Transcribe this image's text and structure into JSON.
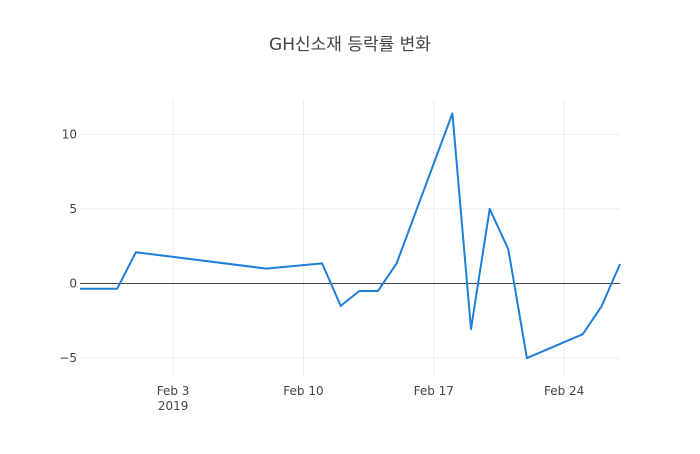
{
  "chart_data": {
    "type": "line",
    "title": "GH신소재 등락률 변화",
    "xlabel": "",
    "ylabel": "",
    "x_ticks": [
      {
        "date": "2019-02-03",
        "label": "Feb 3",
        "sublabel": "2019"
      },
      {
        "date": "2019-02-10",
        "label": "Feb 10",
        "sublabel": ""
      },
      {
        "date": "2019-02-17",
        "label": "Feb 17",
        "sublabel": ""
      },
      {
        "date": "2019-02-24",
        "label": "Feb 24",
        "sublabel": ""
      }
    ],
    "y_ticks": [
      {
        "value": -5,
        "label": "−5"
      },
      {
        "value": 0,
        "label": "0"
      },
      {
        "value": 5,
        "label": "5"
      },
      {
        "value": 10,
        "label": "10"
      }
    ],
    "xlim": [
      "2019-01-29",
      "2019-02-27"
    ],
    "ylim": [
      -6.2,
      12.3
    ],
    "grid": true,
    "series": [
      {
        "color": "#1f7ed8",
        "x": [
          "2019-01-29",
          "2019-01-30",
          "2019-01-31",
          "2019-02-01",
          "2019-02-08",
          "2019-02-11",
          "2019-02-12",
          "2019-02-13",
          "2019-02-14",
          "2019-02-15",
          "2019-02-18",
          "2019-02-19",
          "2019-02-20",
          "2019-02-21",
          "2019-02-22",
          "2019-02-25",
          "2019-02-26",
          "2019-02-27"
        ],
        "y": [
          -0.35,
          -0.35,
          -0.35,
          2.1,
          1.0,
          1.35,
          -1.5,
          -0.5,
          -0.5,
          1.35,
          11.4,
          -3.05,
          5.0,
          2.3,
          -5.0,
          -3.4,
          -1.55,
          1.3
        ]
      }
    ]
  }
}
